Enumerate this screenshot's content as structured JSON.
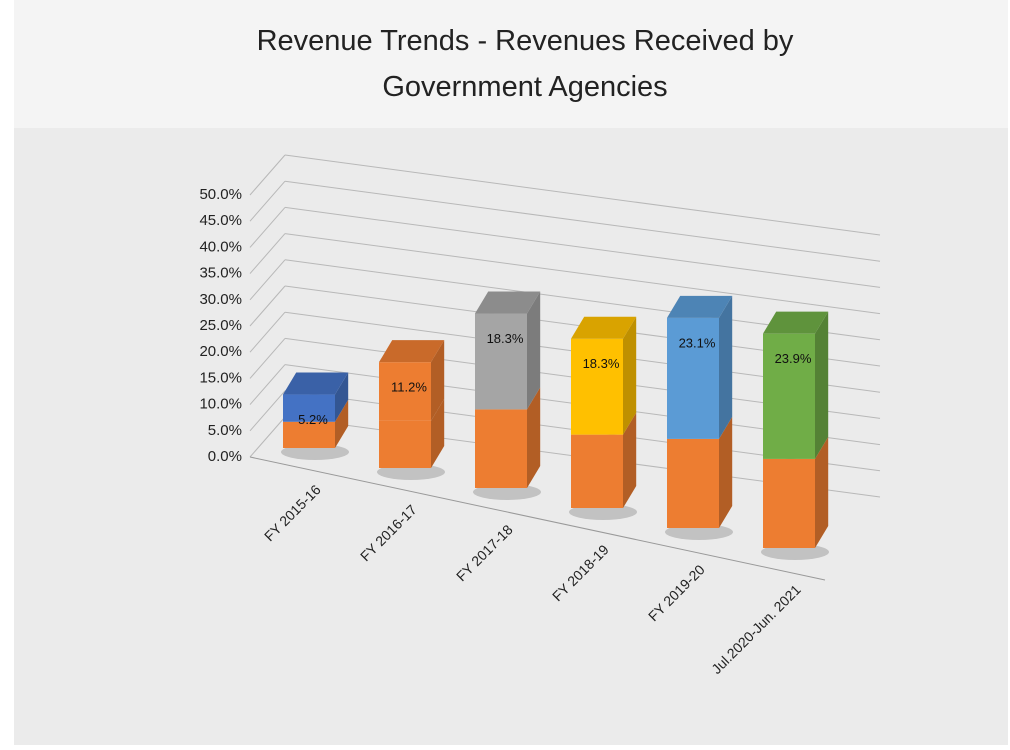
{
  "chart_data": {
    "type": "bar3d_stacked",
    "title": "Revenue Trends - Revenues Received by Government Agencies",
    "categories": [
      "FY 2015-16",
      "FY 2016-17",
      "FY 2017-18",
      "FY 2018-19",
      "FY 2019-20",
      "Jul.2020-Jun. 2021"
    ],
    "series": [
      {
        "color": "#ed7d31",
        "values": [
          5,
          9,
          15,
          14,
          17,
          17
        ]
      },
      {
        "colors": [
          "#4472c4",
          "#ed7d31",
          "#a5a5a5",
          "#ffc000",
          "#5b9bd5",
          "#70ad47"
        ],
        "values": [
          5.2,
          11.2,
          18.3,
          18.3,
          23.1,
          23.9
        ],
        "value_labels": [
          "5.2%",
          "11.2%",
          "18.3%",
          "18.3%",
          "23.1%",
          "23.9%"
        ]
      }
    ],
    "ylim": [
      0,
      50
    ],
    "yticks": [
      {
        "value": 0,
        "label": "0.0%"
      },
      {
        "value": 5,
        "label": "5.0%"
      },
      {
        "value": 10,
        "label": "10.0%"
      },
      {
        "value": 15,
        "label": "15.0%"
      },
      {
        "value": 20,
        "label": "20.0%"
      },
      {
        "value": 25,
        "label": "25.0%"
      },
      {
        "value": 30,
        "label": "30.0%"
      },
      {
        "value": 35,
        "label": "35.0%"
      },
      {
        "value": 40,
        "label": "40.0%"
      },
      {
        "value": 45,
        "label": "45.0%"
      },
      {
        "value": 50,
        "label": "50.0%"
      }
    ],
    "grid": true
  }
}
